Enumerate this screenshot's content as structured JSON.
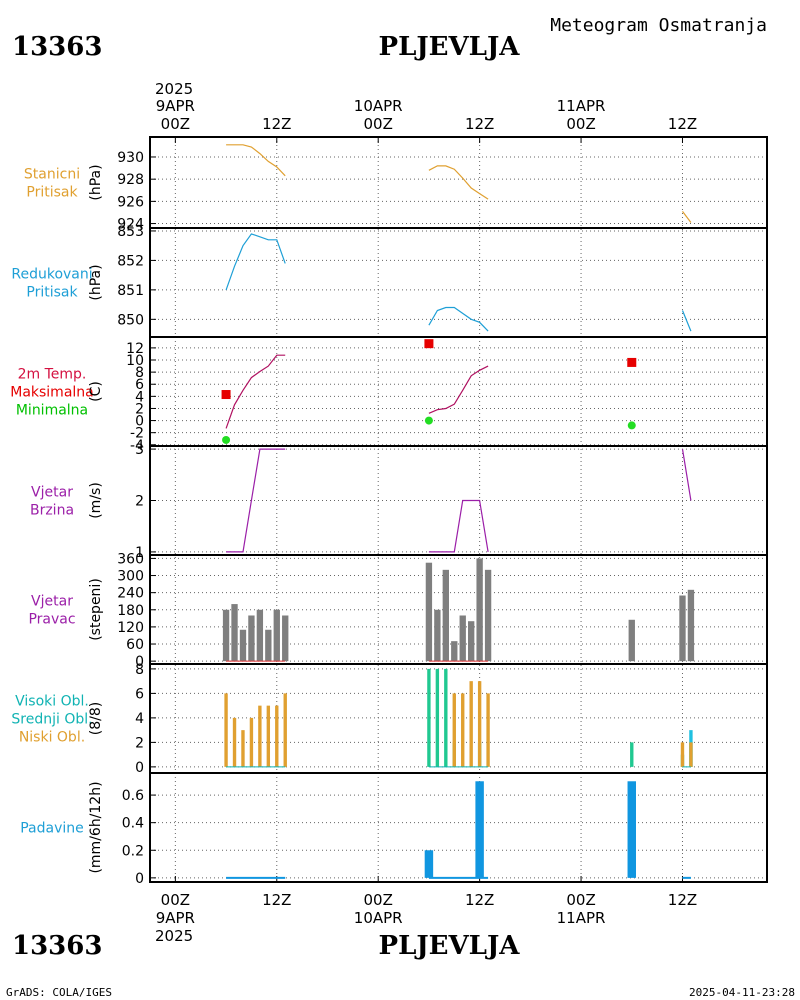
{
  "header": {
    "station_id": "13363",
    "station_name": "PLJEVLJA",
    "chart_title": "Meteogram Osmatranja"
  },
  "footer": {
    "station_id": "13363",
    "station_name": "PLJEVLJA",
    "credit": "GrADS: COLA/IGES",
    "timestamp": "2025-04-11-23:28"
  },
  "time_axis": {
    "year": "2025",
    "ticks": [
      {
        "hour": 0,
        "label": "00Z",
        "date": "9APR"
      },
      {
        "hour": 12,
        "label": "12Z",
        "date": ""
      },
      {
        "hour": 24,
        "label": "00Z",
        "date": "10APR"
      },
      {
        "hour": 36,
        "label": "12Z",
        "date": ""
      },
      {
        "hour": 48,
        "label": "00Z",
        "date": "11APR"
      },
      {
        "hour": 60,
        "label": "12Z",
        "date": ""
      }
    ],
    "range_hours": [
      -3,
      70
    ]
  },
  "chart_data": [
    {
      "id": "stanicni",
      "type": "line",
      "labels": [
        "Stanicni",
        "Pritisak"
      ],
      "label_colors": [
        "#e0a030",
        "#e0a030"
      ],
      "ylabel": "(hPa)",
      "ylim": [
        923.6,
        931.8
      ],
      "yticks": [
        924,
        926,
        928,
        930
      ],
      "color": "#e0a030",
      "segments": [
        {
          "x": [
            6,
            7,
            8,
            9,
            10,
            11,
            12,
            13
          ],
          "y": [
            931.1,
            931.1,
            931.1,
            930.9,
            930.3,
            929.6,
            929.1,
            928.3
          ]
        },
        {
          "x": [
            30,
            31,
            32,
            33,
            34,
            35,
            36,
            37
          ],
          "y": [
            928.8,
            929.2,
            929.2,
            928.9,
            928.1,
            927.2,
            926.7,
            926.2
          ]
        },
        {
          "x": [
            60,
            61
          ],
          "y": [
            925.1,
            924.1
          ]
        }
      ]
    },
    {
      "id": "redukovani",
      "type": "line",
      "labels": [
        "Redukovani",
        "Pritisak"
      ],
      "label_colors": [
        "#1e9fd6",
        "#1e9fd6"
      ],
      "ylabel": "(hPa)",
      "ylim": [
        849.4,
        853.1
      ],
      "yticks": [
        850,
        851,
        852,
        853
      ],
      "color": "#1e9fd6",
      "segments": [
        {
          "x": [
            6,
            7,
            8,
            9,
            10,
            11,
            12,
            13
          ],
          "y": [
            851.0,
            851.8,
            852.5,
            852.9,
            852.8,
            852.7,
            852.7,
            851.9
          ]
        },
        {
          "x": [
            30,
            31,
            32,
            33,
            34,
            35,
            36,
            37
          ],
          "y": [
            849.8,
            850.3,
            850.4,
            850.4,
            850.2,
            850.0,
            849.9,
            849.6
          ]
        },
        {
          "x": [
            60,
            61
          ],
          "y": [
            850.3,
            849.6
          ]
        }
      ]
    },
    {
      "id": "temperatura",
      "type": "line",
      "labels": [
        "2m Temp.",
        "Maksimalna",
        "Minimalna"
      ],
      "label_colors": [
        "#d41040",
        "#e60000",
        "#00c000"
      ],
      "ylabel": "(C)",
      "ylim": [
        -4.2,
        13.8
      ],
      "yticks": [
        -4,
        -2,
        0,
        2,
        4,
        6,
        8,
        10,
        12
      ],
      "color": "#b01060",
      "segments": [
        {
          "x": [
            6,
            7,
            8,
            9,
            10,
            11,
            12,
            13
          ],
          "y": [
            -1.3,
            2.6,
            5.0,
            7.1,
            8.1,
            9.0,
            10.8,
            10.8
          ]
        },
        {
          "x": [
            30,
            31,
            32,
            33,
            34,
            35,
            36,
            37
          ],
          "y": [
            1.2,
            1.8,
            2.0,
            2.7,
            5.0,
            7.4,
            8.3,
            9.0
          ]
        }
      ],
      "maxima": {
        "color": "#e60000",
        "x": [
          6,
          30,
          54
        ],
        "y": [
          4.3,
          12.7,
          9.6
        ]
      },
      "minima": {
        "color": "#22dd22",
        "x": [
          6,
          30,
          54
        ],
        "y": [
          -3.2,
          0.0,
          -0.8
        ]
      }
    },
    {
      "id": "vjetar_brzina",
      "type": "line",
      "labels": [
        "Vjetar",
        "Brzina"
      ],
      "label_colors": [
        "#9b1fa8",
        "#9b1fa8"
      ],
      "ylabel": "(m/s)",
      "ylim": [
        0.94,
        3.06
      ],
      "yticks": [
        1,
        2,
        3
      ],
      "color": "#9b1fa8",
      "segments": [
        {
          "x": [
            6,
            7,
            8,
            9,
            10,
            11,
            12,
            13
          ],
          "y": [
            1,
            1,
            1,
            2,
            3,
            3,
            3,
            3
          ]
        },
        {
          "x": [
            30,
            31,
            32,
            33,
            34,
            35,
            36,
            37
          ],
          "y": [
            1,
            1,
            1,
            1,
            2,
            2,
            2,
            1
          ]
        },
        {
          "x": [
            60,
            61
          ],
          "y": [
            3,
            2
          ]
        }
      ]
    },
    {
      "id": "vjetar_pravac",
      "type": "bar",
      "labels": [
        "Vjetar",
        "Pravac"
      ],
      "label_colors": [
        "#9b1fa8",
        "#9b1fa8"
      ],
      "ylabel": "(stepeni)",
      "ylim": [
        -10,
        372
      ],
      "yticks": [
        0,
        60,
        120,
        180,
        240,
        300,
        360
      ],
      "color": "#7f7f7f",
      "baseline_color": "#e03030",
      "bar_width_hours": 0.75,
      "x": [
        6,
        7,
        8,
        9,
        10,
        11,
        12,
        13,
        30,
        31,
        32,
        33,
        34,
        35,
        36,
        37,
        54,
        60,
        61
      ],
      "values": [
        180,
        200,
        110,
        160,
        180,
        110,
        180,
        160,
        345,
        180,
        320,
        70,
        160,
        140,
        360,
        320,
        145,
        230,
        250
      ]
    },
    {
      "id": "oblaci",
      "type": "bar",
      "labels": [
        "Visoki Obl.",
        "Srednji Obl.",
        "Niski Obl."
      ],
      "label_colors": [
        "#10b3b3",
        "#10b3b3",
        "#e0a030"
      ],
      "ylabel": "(8/8)",
      "ylim": [
        -0.5,
        8.4
      ],
      "yticks": [
        0,
        2,
        4,
        6,
        8
      ],
      "bar_width_hours": 0.4,
      "series": [
        {
          "name": "Visoki Obl.",
          "color": "#20c0e0",
          "x": [
            61
          ],
          "values": [
            3
          ]
        },
        {
          "name": "Srednji Obl.",
          "color": "#20c890",
          "x": [
            30,
            31,
            32,
            33,
            36,
            54,
            60,
            61
          ],
          "values": [
            8,
            8,
            8,
            2,
            2,
            2,
            1,
            2
          ]
        },
        {
          "name": "Niski Obl.",
          "color": "#e0a030",
          "x": [
            6,
            7,
            8,
            9,
            10,
            11,
            12,
            13,
            33,
            34,
            35,
            36,
            37,
            60,
            61
          ],
          "values": [
            6,
            4,
            3,
            4,
            5,
            5,
            5,
            6,
            6,
            6,
            7,
            7,
            6,
            2,
            2
          ]
        }
      ]
    },
    {
      "id": "padavine",
      "type": "bar",
      "labels": [
        "Padavine"
      ],
      "label_colors": [
        "#1e9fd6"
      ],
      "ylabel": "(mm/6h/12h)",
      "ylim": [
        -0.03,
        0.76
      ],
      "yticks": [
        0,
        0.2,
        0.4,
        0.6
      ],
      "color": "#1096e0",
      "baseline_color": "#1096e0",
      "bar_width_hours": 1.0,
      "x": [
        30,
        36,
        54
      ],
      "values": [
        0.2,
        0.7,
        0.7
      ],
      "trace_segments": [
        [
          6,
          13
        ],
        [
          30,
          37
        ],
        [
          60,
          61
        ]
      ]
    }
  ]
}
